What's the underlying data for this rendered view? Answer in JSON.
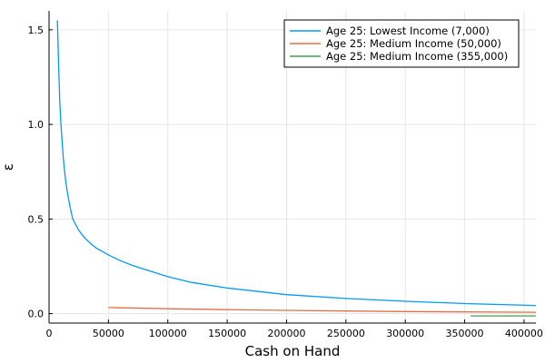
{
  "chart_data": {
    "type": "line",
    "title": "",
    "xlabel": "Cash on Hand",
    "ylabel": "ε",
    "xlim": [
      0,
      410000
    ],
    "ylim": [
      -0.05,
      1.6
    ],
    "x_ticks": [
      0,
      50000,
      100000,
      150000,
      200000,
      250000,
      300000,
      350000,
      400000
    ],
    "x_tick_labels": [
      "0",
      "50000",
      "100000",
      "150000",
      "200000",
      "250000",
      "300000",
      "350000",
      "400000"
    ],
    "y_ticks": [
      0.0,
      0.5,
      1.0,
      1.5
    ],
    "y_tick_labels": [
      "0.0",
      "0.5",
      "1.0",
      "1.5"
    ],
    "grid": true,
    "legend_position": "top-right",
    "series": [
      {
        "name": "Age 25: Lowest Income (7,000)",
        "color": "#009AFA",
        "x": [
          7000,
          8000,
          9000,
          10000,
          12000,
          14000,
          16000,
          18000,
          20000,
          25000,
          30000,
          35000,
          40000,
          50000,
          60000,
          70000,
          80000,
          100000,
          120000,
          150000,
          200000,
          250000,
          300000,
          350000,
          410000
        ],
        "y": [
          1.55,
          1.32,
          1.12,
          1.0,
          0.82,
          0.7,
          0.62,
          0.555,
          0.5,
          0.44,
          0.4,
          0.37,
          0.345,
          0.31,
          0.28,
          0.255,
          0.235,
          0.195,
          0.165,
          0.135,
          0.1,
          0.08,
          0.065,
          0.053,
          0.043
        ]
      },
      {
        "name": "Age 25: Medium Income (50,000)",
        "color": "#E36F47",
        "x": [
          50000,
          100000,
          150000,
          200000,
          250000,
          300000,
          350000,
          410000
        ],
        "y": [
          0.032,
          0.026,
          0.021,
          0.017,
          0.014,
          0.011,
          0.009,
          0.007
        ]
      },
      {
        "name": "Age 25: Medium Income (355,000)",
        "color": "#3EA44E",
        "x": [
          355000,
          380000,
          410000
        ],
        "y": [
          -0.012,
          -0.012,
          -0.012
        ]
      }
    ]
  }
}
